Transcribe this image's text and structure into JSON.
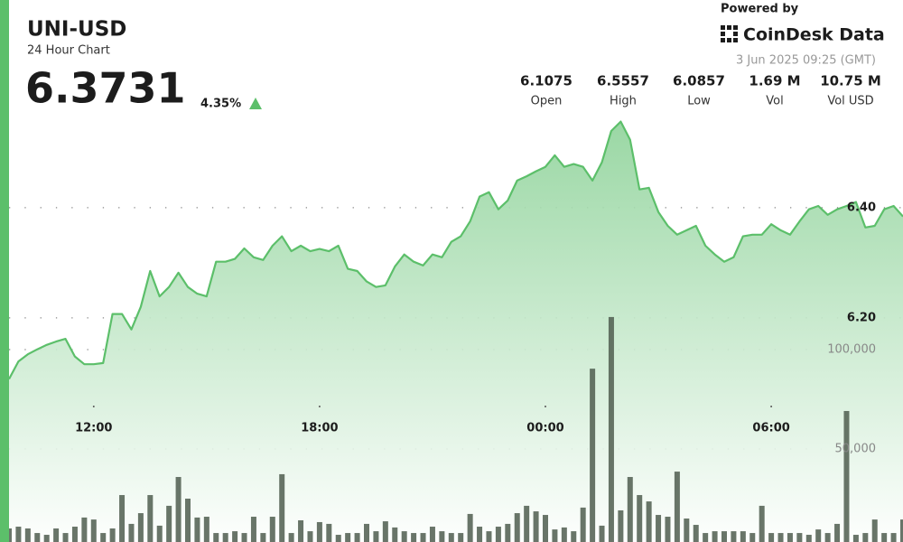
{
  "header": {
    "title": "UNI-USD",
    "subtitle": "24 Hour Chart",
    "price": "6.3731",
    "change": "4.35%",
    "powered_by": "Powered by",
    "brand": "CoinDesk Data",
    "timestamp": "3 Jun 2025 09:25 (GMT)"
  },
  "stats": [
    {
      "value": "6.1075",
      "label": "Open"
    },
    {
      "value": "6.5557",
      "label": "High"
    },
    {
      "value": "6.0857",
      "label": "Low"
    },
    {
      "value": "1.69 M",
      "label": "Vol"
    },
    {
      "value": "10.75 M",
      "label": "Vol USD"
    }
  ],
  "chart_data": {
    "type": "line",
    "categories": [
      null,
      null,
      null,
      null,
      null,
      null,
      null,
      null,
      null,
      "12:00",
      null,
      null,
      null,
      null,
      null,
      null,
      null,
      null,
      null,
      null,
      null,
      null,
      null,
      null,
      null,
      null,
      null,
      null,
      null,
      null,
      null,
      null,
      null,
      "18:00",
      null,
      null,
      null,
      null,
      null,
      null,
      null,
      null,
      null,
      null,
      null,
      null,
      null,
      null,
      null,
      null,
      null,
      null,
      null,
      null,
      null,
      null,
      null,
      "00:00",
      null,
      null,
      null,
      null,
      null,
      null,
      null,
      null,
      null,
      null,
      null,
      null,
      null,
      null,
      null,
      null,
      null,
      null,
      null,
      null,
      null,
      null,
      null,
      "06:00",
      null,
      null,
      null,
      null,
      null,
      null,
      null,
      null,
      null,
      null,
      null,
      null,
      null,
      null
    ],
    "series": [
      {
        "color": "#5cbf6a",
        "values": [
          6.089,
          6.121,
          6.134,
          6.143,
          6.151,
          6.157,
          6.162,
          6.13,
          6.116,
          6.116,
          6.118,
          6.207,
          6.207,
          6.179,
          6.22,
          6.285,
          6.239,
          6.256,
          6.282,
          6.256,
          6.244,
          6.239,
          6.302,
          6.302,
          6.307,
          6.326,
          6.31,
          6.305,
          6.331,
          6.348,
          6.321,
          6.331,
          6.321,
          6.325,
          6.321,
          6.331,
          6.289,
          6.285,
          6.266,
          6.256,
          6.259,
          6.293,
          6.315,
          6.302,
          6.295,
          6.315,
          6.31,
          6.338,
          6.348,
          6.375,
          6.42,
          6.428,
          6.397,
          6.413,
          6.449,
          6.457,
          6.466,
          6.474,
          6.495,
          6.474,
          6.479,
          6.474,
          6.449,
          6.482,
          6.539,
          6.556,
          6.523,
          6.433,
          6.436,
          6.392,
          6.367,
          6.351,
          6.359,
          6.367,
          6.331,
          6.315,
          6.302,
          6.31,
          6.348,
          6.351,
          6.351,
          6.37,
          6.359,
          6.351,
          6.375,
          6.397,
          6.403,
          6.387,
          6.397,
          6.403,
          6.41,
          6.364,
          6.367,
          6.397,
          6.403,
          6.384
        ]
      },
      {
        "color": "#4f5d4f",
        "axis": "y2",
        "values": [
          10000,
          10900,
          10000,
          7700,
          6800,
          10000,
          7700,
          10900,
          15500,
          14500,
          7700,
          10000,
          26800,
          12300,
          17700,
          26800,
          11400,
          21400,
          35900,
          25000,
          15500,
          15900,
          7700,
          7700,
          8600,
          7700,
          15900,
          7700,
          15900,
          37300,
          7700,
          14100,
          8600,
          13200,
          12300,
          6800,
          7700,
          7700,
          12300,
          8600,
          13600,
          10500,
          8600,
          7700,
          7700,
          10900,
          8600,
          7700,
          7700,
          17300,
          10900,
          8600,
          10900,
          12300,
          17700,
          21400,
          18600,
          16800,
          9500,
          10500,
          8600,
          20500,
          90400,
          11400,
          116400,
          19100,
          35900,
          26800,
          23600,
          16800,
          15900,
          38600,
          15000,
          11800,
          7700,
          8600,
          8600,
          8600,
          8600,
          7700,
          21400,
          7700,
          7700,
          7700,
          7700,
          6800,
          9500,
          7700,
          12300,
          69100,
          6800,
          7700,
          14500,
          7700,
          7700,
          14500
        ]
      }
    ],
    "ylim": [
      5.782,
      6.58
    ],
    "yticks": [
      {
        "value": 6.2,
        "label": "6.20"
      },
      {
        "value": 6.4,
        "label": "6.40"
      }
    ],
    "y2lim": [
      0,
      221364
    ],
    "y2ticks": [
      {
        "value": 50000,
        "label": "50,000"
      },
      {
        "value": 100000,
        "label": "100,000"
      }
    ],
    "grid": true
  }
}
